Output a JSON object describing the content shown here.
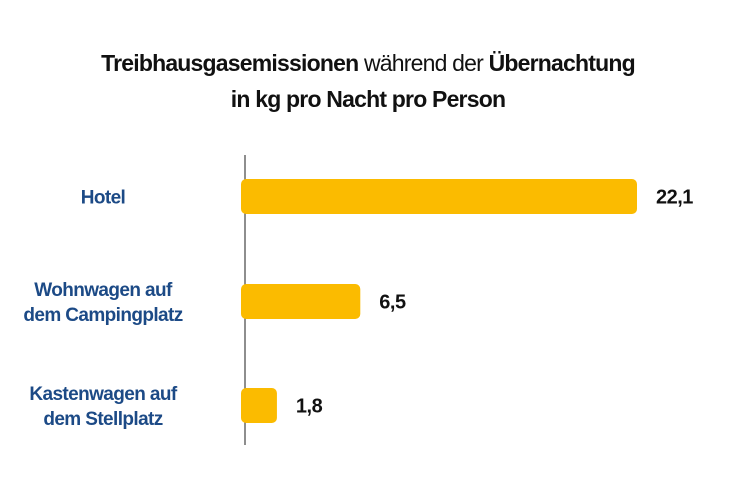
{
  "chart_data": {
    "type": "bar",
    "orientation": "horizontal",
    "title": {
      "line1_part1": "Treibhausgasemissionen",
      "line1_part2": "während der",
      "line1_part3": "Übernachtung",
      "line2": "in kg pro Nacht pro Person"
    },
    "categories": [
      [
        "Hotel"
      ],
      [
        "Wohnwagen auf",
        "dem Campingplatz"
      ],
      [
        "Kastenwagen auf",
        "dem Stellplatz"
      ]
    ],
    "values": [
      22.1,
      6.5,
      1.8
    ],
    "value_labels": [
      "22,1",
      "6,5",
      "1,8"
    ],
    "xlim": [
      0,
      22.1
    ],
    "grid": false,
    "colors": {
      "bar": "#fbbb00",
      "category_text": "#1c4a86",
      "axis": "#444444"
    }
  }
}
